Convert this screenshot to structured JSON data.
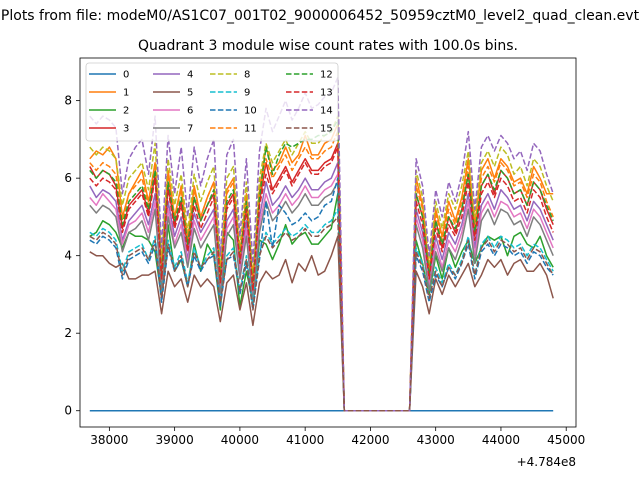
{
  "header": {
    "filename_title": "Plots from file: modeM0/AS1C07_001T02_9000006452_50959cztM0_level2_quad_clean.evt"
  },
  "chart_data": {
    "type": "line",
    "title": "Quadrant 3 module wise count rates with 100.0s bins.",
    "xlabel": "",
    "ylabel": "",
    "x_offset_label": "+4.784e8",
    "xlim": [
      37550,
      45150
    ],
    "ylim": [
      -0.42,
      9.1
    ],
    "xticks": [
      38000,
      39000,
      40000,
      41000,
      42000,
      43000,
      44000,
      45000
    ],
    "yticks": [
      0,
      2,
      4,
      6,
      8
    ],
    "grid": false,
    "legend_position": "top-left",
    "legend_columns": 4,
    "x_start": 37700,
    "x_step": 100,
    "series": [
      {
        "name": "0",
        "color": "#1f77b4",
        "dashed": false,
        "values": [
          0,
          0,
          0,
          0,
          0,
          0,
          0,
          0,
          0,
          0,
          0,
          0,
          0,
          0,
          0,
          0,
          0,
          0,
          0,
          0,
          0,
          0,
          0,
          0,
          0,
          0,
          0,
          0,
          0,
          0,
          0,
          0,
          0,
          0,
          0,
          0,
          0,
          0,
          0,
          0,
          0,
          0,
          0,
          0,
          0,
          0,
          0,
          0,
          0,
          0,
          0,
          0,
          0,
          0,
          0,
          0,
          0,
          0,
          0,
          0,
          0,
          0,
          0,
          0,
          0,
          0,
          0,
          0,
          0,
          0,
          0,
          0
        ]
      },
      {
        "name": "1",
        "color": "#ff7f0e",
        "dashed": false,
        "values": [
          6.5,
          6.7,
          6.6,
          6.8,
          6.5,
          5.0,
          5.6,
          5.9,
          6.2,
          5.4,
          6.4,
          3.7,
          6.2,
          5.0,
          5.8,
          4.4,
          5.8,
          5.0,
          5.5,
          5.9,
          3.5,
          5.7,
          6.0,
          4.0,
          5.6,
          3.3,
          5.7,
          6.8,
          6.2,
          6.4,
          6.8,
          6.4,
          6.6,
          7.1,
          6.6,
          6.6,
          6.9,
          7.0,
          7.4,
          0,
          0,
          0,
          0,
          0,
          0,
          0,
          0,
          0,
          0,
          0,
          6.0,
          5.3,
          3.6,
          5.2,
          4.5,
          5.4,
          4.9,
          5.5,
          6.5,
          4.8,
          6.2,
          6.5,
          6.0,
          6.5,
          6.3,
          5.9,
          6.0,
          5.6,
          6.3,
          6.0,
          5.6,
          5.6
        ]
      },
      {
        "name": "2",
        "color": "#2ca02c",
        "dashed": false,
        "values": [
          4.5,
          4.6,
          4.9,
          4.8,
          4.6,
          4.2,
          4.6,
          4.5,
          4.5,
          4.4,
          4.1,
          2.9,
          4.8,
          3.6,
          3.9,
          3.2,
          4.3,
          3.6,
          4.3,
          4.0,
          2.6,
          4.6,
          4.4,
          2.7,
          3.6,
          2.8,
          4.4,
          4.3,
          3.9,
          4.3,
          4.8,
          4.3,
          4.5,
          4.6,
          4.3,
          4.3,
          4.5,
          4.7,
          5.6,
          0,
          0,
          0,
          0,
          0,
          0,
          0,
          0,
          0,
          0,
          0,
          4.4,
          3.8,
          3.0,
          4.0,
          3.4,
          4.2,
          3.7,
          4.1,
          4.4,
          3.8,
          4.2,
          4.5,
          4.4,
          4.5,
          4.0,
          4.5,
          4.6,
          4.3,
          4.2,
          4.5,
          4.0,
          3.7
        ]
      },
      {
        "name": "3",
        "color": "#d62728",
        "dashed": false,
        "values": [
          6.3,
          6.0,
          6.2,
          6.1,
          5.8,
          4.7,
          5.3,
          5.5,
          5.7,
          5.1,
          6.1,
          3.5,
          5.8,
          4.8,
          5.4,
          4.2,
          5.5,
          4.9,
          5.3,
          5.6,
          3.4,
          5.3,
          5.6,
          3.9,
          5.3,
          3.2,
          5.4,
          6.4,
          5.7,
          6.0,
          6.3,
          5.9,
          6.2,
          6.5,
          6.2,
          6.2,
          6.4,
          6.5,
          6.9,
          0,
          0,
          0,
          0,
          0,
          0,
          0,
          0,
          0,
          0,
          0,
          5.6,
          5.0,
          3.5,
          4.9,
          4.2,
          5.0,
          4.6,
          5.2,
          6.1,
          4.5,
          5.8,
          6.1,
          5.6,
          6.2,
          6.0,
          5.6,
          5.7,
          5.3,
          5.9,
          5.7,
          5.2,
          4.8
        ]
      },
      {
        "name": "4",
        "color": "#9467bd",
        "dashed": false,
        "values": [
          5.8,
          5.5,
          5.7,
          5.6,
          5.4,
          4.4,
          4.9,
          5.1,
          5.3,
          4.8,
          5.6,
          3.3,
          5.4,
          4.5,
          5.0,
          3.9,
          5.1,
          4.6,
          4.9,
          5.2,
          3.2,
          4.9,
          5.2,
          3.6,
          4.9,
          3.0,
          5.0,
          5.9,
          5.3,
          5.5,
          5.8,
          5.5,
          5.7,
          6.0,
          5.7,
          5.7,
          5.9,
          6.0,
          6.4,
          0,
          0,
          0,
          0,
          0,
          0,
          0,
          0,
          0,
          0,
          0,
          5.2,
          4.6,
          3.3,
          4.5,
          3.9,
          4.6,
          4.3,
          4.8,
          5.6,
          4.2,
          5.3,
          5.6,
          5.2,
          5.7,
          5.5,
          5.2,
          5.3,
          4.9,
          5.4,
          5.2,
          4.8,
          4.4
        ]
      },
      {
        "name": "5",
        "color": "#8c564b",
        "dashed": false,
        "values": [
          4.1,
          4.0,
          4.0,
          3.8,
          3.7,
          3.8,
          3.4,
          3.4,
          3.5,
          3.5,
          3.6,
          2.5,
          3.6,
          3.2,
          3.4,
          2.8,
          3.5,
          3.2,
          3.4,
          3.2,
          2.3,
          3.3,
          3.5,
          2.6,
          3.3,
          2.2,
          3.3,
          3.6,
          3.4,
          3.5,
          3.9,
          3.3,
          3.8,
          3.6,
          4.0,
          3.5,
          3.6,
          4.0,
          4.5,
          0,
          0,
          0,
          0,
          0,
          0,
          0,
          0,
          0,
          0,
          0,
          3.6,
          3.2,
          2.5,
          3.4,
          3.0,
          3.5,
          3.2,
          3.5,
          3.8,
          3.2,
          3.5,
          3.9,
          3.7,
          3.9,
          3.5,
          3.8,
          3.9,
          3.6,
          3.6,
          3.8,
          3.5,
          2.9
        ]
      },
      {
        "name": "6",
        "color": "#e377c2",
        "dashed": false,
        "values": [
          5.5,
          5.3,
          5.6,
          5.4,
          5.2,
          4.3,
          4.8,
          4.9,
          5.1,
          4.6,
          5.4,
          3.2,
          5.2,
          4.3,
          4.8,
          3.8,
          4.9,
          4.4,
          4.7,
          5.0,
          3.1,
          4.7,
          5.0,
          3.5,
          4.7,
          2.9,
          4.8,
          5.6,
          5.1,
          5.3,
          5.6,
          5.3,
          5.5,
          5.8,
          5.5,
          5.5,
          5.7,
          5.8,
          6.1,
          0,
          0,
          0,
          0,
          0,
          0,
          0,
          0,
          0,
          0,
          0,
          5.0,
          4.4,
          3.2,
          4.3,
          3.7,
          4.4,
          4.1,
          4.6,
          5.4,
          4.0,
          5.1,
          5.4,
          5.0,
          5.4,
          5.3,
          5.0,
          5.1,
          4.7,
          5.2,
          5.0,
          4.6,
          4.2
        ]
      },
      {
        "name": "7",
        "color": "#7f7f7f",
        "dashed": false,
        "values": [
          5.3,
          5.1,
          5.3,
          5.2,
          5.0,
          4.1,
          4.6,
          4.7,
          4.9,
          4.4,
          5.2,
          3.1,
          5.0,
          4.2,
          4.6,
          3.7,
          4.7,
          4.2,
          4.5,
          4.8,
          3.0,
          4.5,
          4.8,
          3.4,
          4.5,
          2.8,
          4.6,
          5.4,
          4.9,
          5.1,
          5.4,
          5.1,
          5.3,
          5.6,
          5.3,
          5.3,
          5.5,
          5.6,
          5.9,
          0,
          0,
          0,
          0,
          0,
          0,
          0,
          0,
          0,
          0,
          0,
          4.8,
          4.2,
          3.1,
          4.1,
          3.6,
          4.2,
          3.9,
          4.4,
          5.2,
          3.8,
          4.9,
          5.2,
          4.8,
          5.2,
          5.1,
          4.8,
          4.9,
          4.5,
          5.0,
          4.8,
          4.4,
          4.0
        ]
      },
      {
        "name": "8",
        "color": "#bcbd22",
        "dashed": true,
        "values": [
          6.8,
          6.6,
          6.8,
          6.7,
          6.5,
          5.3,
          6.0,
          6.2,
          6.4,
          5.7,
          6.9,
          3.9,
          6.5,
          5.3,
          6.1,
          4.6,
          6.1,
          5.4,
          5.9,
          6.3,
          3.7,
          6.0,
          6.3,
          4.2,
          5.9,
          3.5,
          6.0,
          6.9,
          6.4,
          6.7,
          7.0,
          6.6,
          6.9,
          7.2,
          6.9,
          6.9,
          7.1,
          7.2,
          7.6,
          0,
          0,
          0,
          0,
          0,
          0,
          0,
          0,
          0,
          0,
          0,
          6.2,
          5.5,
          3.8,
          5.4,
          4.7,
          5.6,
          5.2,
          5.8,
          6.7,
          5.0,
          6.4,
          6.7,
          6.3,
          6.8,
          6.6,
          6.1,
          6.3,
          5.8,
          6.5,
          6.3,
          5.8,
          5.4
        ]
      },
      {
        "name": "9",
        "color": "#17becf",
        "dashed": true,
        "values": [
          4.6,
          4.5,
          4.7,
          4.6,
          4.4,
          3.6,
          4.1,
          4.2,
          4.3,
          3.9,
          4.5,
          2.9,
          4.4,
          3.7,
          4.1,
          3.3,
          4.2,
          3.7,
          4.0,
          4.2,
          2.8,
          4.0,
          4.2,
          3.1,
          4.0,
          2.7,
          4.1,
          4.6,
          4.3,
          4.5,
          4.7,
          4.5,
          4.6,
          4.8,
          4.6,
          4.6,
          4.8,
          4.9,
          5.2,
          0,
          0,
          0,
          0,
          0,
          0,
          0,
          0,
          0,
          0,
          0,
          4.2,
          3.8,
          2.9,
          3.7,
          3.3,
          3.8,
          3.5,
          3.9,
          4.5,
          3.5,
          4.3,
          4.5,
          4.2,
          4.5,
          4.4,
          4.2,
          4.3,
          4.0,
          4.3,
          4.2,
          3.9,
          3.6
        ]
      },
      {
        "name": "10",
        "color": "#1f77b4",
        "dashed": true,
        "values": [
          4.4,
          4.3,
          4.5,
          4.4,
          4.2,
          3.4,
          3.9,
          4.0,
          4.1,
          3.8,
          4.3,
          2.8,
          4.2,
          3.6,
          3.9,
          3.2,
          4.0,
          3.6,
          3.9,
          4.0,
          2.7,
          3.9,
          4.0,
          3.0,
          3.8,
          2.6,
          3.9,
          5.4,
          4.2,
          5.3,
          5.1,
          4.8,
          4.9,
          5.1,
          4.9,
          5.0,
          5.3,
          5.4,
          6.0,
          0,
          0,
          0,
          0,
          0,
          0,
          0,
          0,
          0,
          0,
          0,
          4.0,
          3.6,
          2.8,
          3.5,
          3.2,
          3.7,
          3.4,
          3.8,
          4.3,
          3.4,
          4.1,
          4.3,
          4.0,
          4.3,
          4.2,
          4.0,
          4.1,
          3.8,
          4.1,
          4.0,
          3.7,
          3.5
        ]
      },
      {
        "name": "11",
        "color": "#ff7f0e",
        "dashed": true,
        "values": [
          6.4,
          6.2,
          6.4,
          6.3,
          6.1,
          4.9,
          5.6,
          5.8,
          6.0,
          5.3,
          6.4,
          3.6,
          6.1,
          5.0,
          5.7,
          4.4,
          5.7,
          5.0,
          5.5,
          5.9,
          3.5,
          5.6,
          5.9,
          4.0,
          5.5,
          3.3,
          5.6,
          6.5,
          6.0,
          6.3,
          6.6,
          6.2,
          6.5,
          6.8,
          6.5,
          6.5,
          6.7,
          6.8,
          7.2,
          0,
          0,
          0,
          0,
          0,
          0,
          0,
          0,
          0,
          0,
          0,
          5.8,
          5.2,
          3.6,
          5.1,
          4.4,
          5.2,
          4.8,
          5.4,
          6.3,
          4.7,
          6.0,
          6.3,
          5.9,
          6.4,
          6.2,
          5.8,
          5.9,
          5.5,
          6.1,
          5.9,
          5.4,
          5.0
        ]
      },
      {
        "name": "12",
        "color": "#2ca02c",
        "dashed": true,
        "values": [
          6.2,
          6.0,
          6.2,
          6.1,
          5.9,
          4.8,
          5.4,
          5.6,
          5.8,
          5.2,
          6.2,
          3.5,
          5.9,
          4.9,
          5.5,
          4.3,
          5.5,
          4.9,
          5.3,
          5.7,
          3.4,
          5.4,
          5.7,
          3.9,
          5.4,
          3.2,
          5.5,
          6.8,
          6.1,
          6.6,
          6.9,
          6.8,
          6.9,
          7.0,
          7.0,
          7.1,
          7.1,
          7.2,
          7.5,
          0,
          0,
          0,
          0,
          0,
          0,
          0,
          0,
          0,
          0,
          0,
          5.6,
          5.0,
          3.5,
          4.9,
          4.3,
          5.0,
          4.7,
          5.2,
          6.1,
          4.6,
          5.8,
          6.1,
          5.7,
          6.2,
          6.0,
          5.6,
          5.7,
          5.3,
          5.9,
          5.7,
          5.3,
          4.9
        ]
      },
      {
        "name": "13",
        "color": "#d62728",
        "dashed": true,
        "values": [
          6.0,
          5.8,
          6.0,
          5.9,
          5.7,
          4.6,
          5.2,
          5.4,
          5.6,
          5.0,
          6.0,
          3.4,
          5.7,
          4.7,
          5.3,
          4.1,
          5.3,
          4.7,
          5.1,
          5.5,
          3.3,
          5.2,
          5.5,
          3.8,
          5.2,
          3.1,
          5.3,
          6.1,
          5.6,
          5.9,
          6.2,
          5.8,
          6.1,
          6.4,
          6.1,
          6.1,
          6.3,
          6.4,
          6.8,
          0,
          0,
          0,
          0,
          0,
          0,
          0,
          0,
          0,
          0,
          0,
          5.4,
          4.8,
          3.4,
          4.7,
          4.1,
          4.8,
          4.5,
          5.0,
          5.9,
          4.4,
          5.6,
          5.9,
          5.5,
          6.0,
          5.8,
          5.4,
          5.5,
          5.1,
          5.7,
          5.5,
          5.0,
          4.6
        ]
      },
      {
        "name": "14",
        "color": "#9467bd",
        "dashed": true,
        "values": [
          7.6,
          7.4,
          7.6,
          7.5,
          7.3,
          5.6,
          6.5,
          6.8,
          7.0,
          6.1,
          7.6,
          4.2,
          7.1,
          5.6,
          6.8,
          5.0,
          6.8,
          5.8,
          6.5,
          7.0,
          4.0,
          6.6,
          7.0,
          4.5,
          6.5,
          3.8,
          6.7,
          7.8,
          7.2,
          7.6,
          8.0,
          7.5,
          7.8,
          8.2,
          7.8,
          7.9,
          8.1,
          8.2,
          8.6,
          0,
          0,
          0,
          0,
          0,
          0,
          0,
          0,
          0,
          0,
          0,
          6.5,
          5.8,
          4.0,
          5.7,
          5.0,
          5.9,
          5.4,
          6.1,
          7.2,
          5.2,
          6.8,
          7.1,
          6.7,
          7.1,
          6.9,
          6.5,
          6.7,
          6.2,
          6.9,
          6.7,
          6.1,
          5.6
        ]
      },
      {
        "name": "15",
        "color": "#8c564b",
        "dashed": true,
        "values": [
          4.5,
          4.4,
          4.6,
          4.5,
          4.3,
          3.5,
          4.0,
          4.1,
          4.2,
          3.9,
          4.4,
          2.9,
          4.3,
          3.6,
          4.0,
          3.2,
          4.1,
          3.7,
          3.9,
          4.1,
          2.8,
          3.9,
          4.1,
          3.1,
          3.9,
          2.6,
          4.0,
          4.5,
          4.2,
          4.4,
          4.6,
          4.4,
          4.5,
          4.7,
          4.5,
          4.5,
          4.7,
          4.8,
          5.0,
          0,
          0,
          0,
          0,
          0,
          0,
          0,
          0,
          0,
          0,
          0,
          4.1,
          3.7,
          2.9,
          3.6,
          3.2,
          3.7,
          3.5,
          3.8,
          4.4,
          3.5,
          4.2,
          4.4,
          4.1,
          4.4,
          4.3,
          4.1,
          4.2,
          3.9,
          4.2,
          4.1,
          3.8,
          3.5
        ]
      }
    ]
  }
}
